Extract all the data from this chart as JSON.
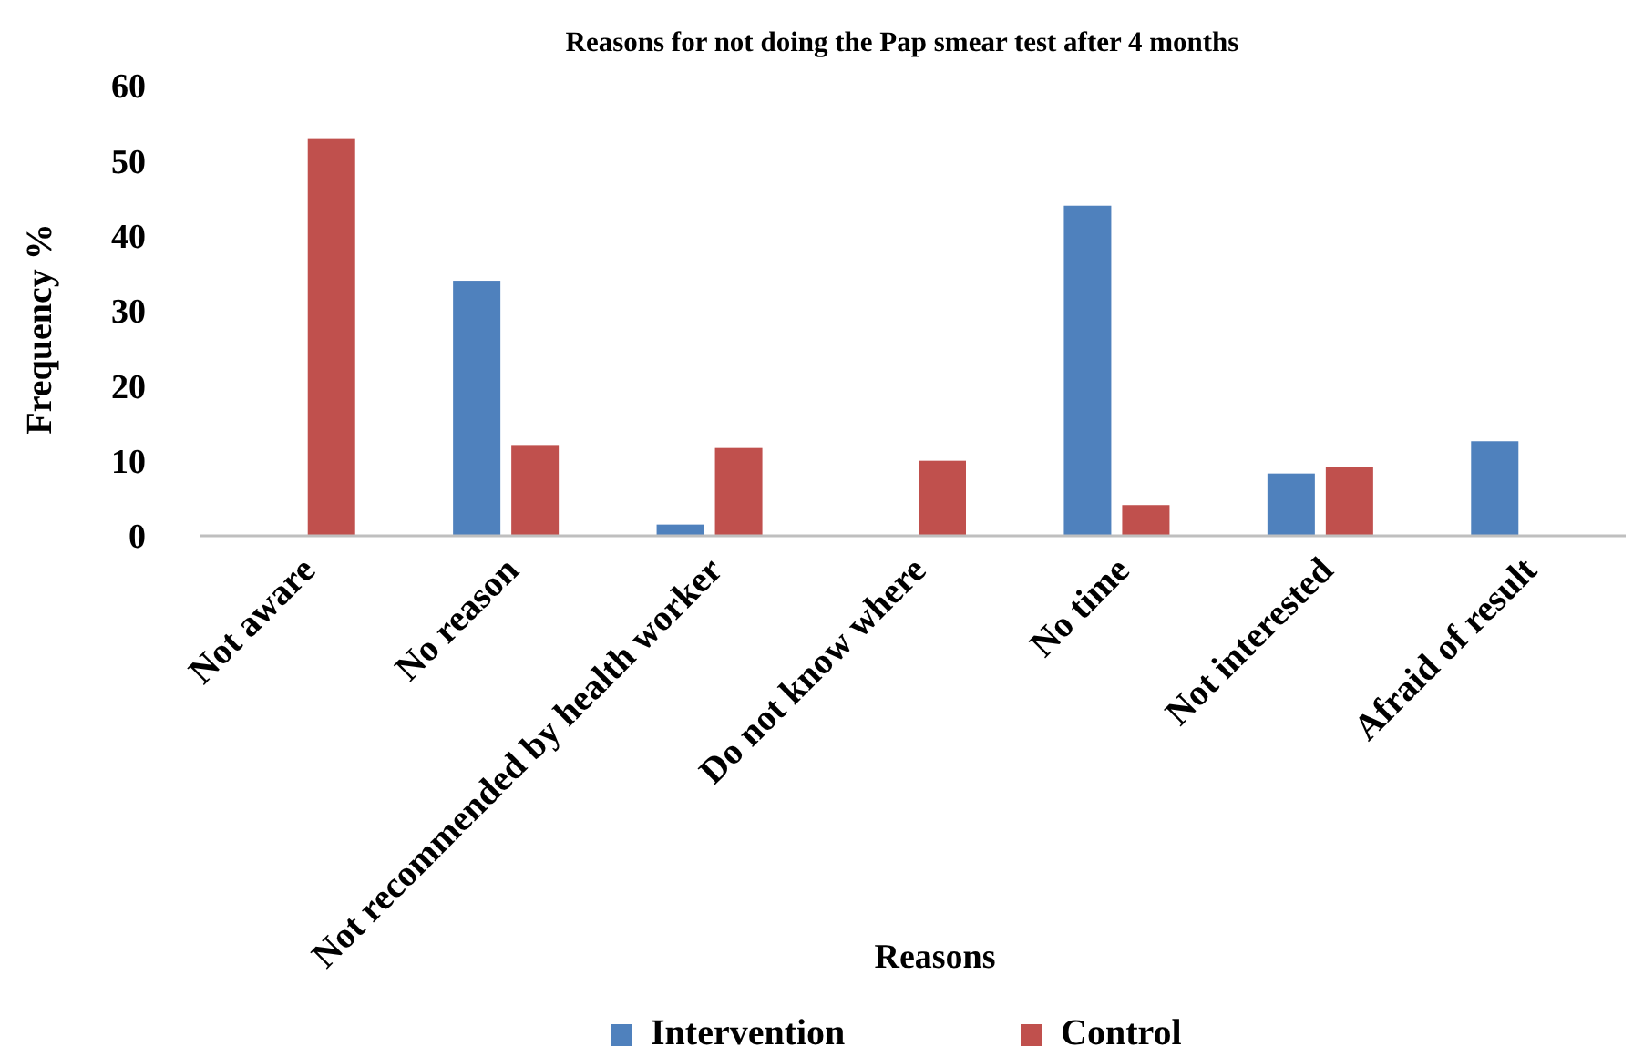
{
  "chart_data": {
    "type": "bar",
    "title": "Reasons for not doing the Pap smear test after 4 months",
    "xlabel": "Reasons",
    "ylabel": "Frequency %",
    "categories": [
      "Not aware",
      "No reason",
      "Not recommended by health worker",
      "Do not know where",
      "No time",
      "Not interested",
      "Afraid of result"
    ],
    "series": [
      {
        "name": "Intervention",
        "color": "#4f81bd",
        "values": [
          null,
          34,
          1.5,
          null,
          44,
          8.3,
          12.6
        ]
      },
      {
        "name": "Control",
        "color": "#c0504d",
        "values": [
          53,
          12.1,
          11.7,
          10,
          4.1,
          9.2,
          null
        ]
      }
    ],
    "ylim": [
      0,
      60
    ],
    "yticks": [
      0,
      10,
      20,
      30,
      40,
      50,
      60
    ],
    "grid": false,
    "legend": "bottom"
  }
}
